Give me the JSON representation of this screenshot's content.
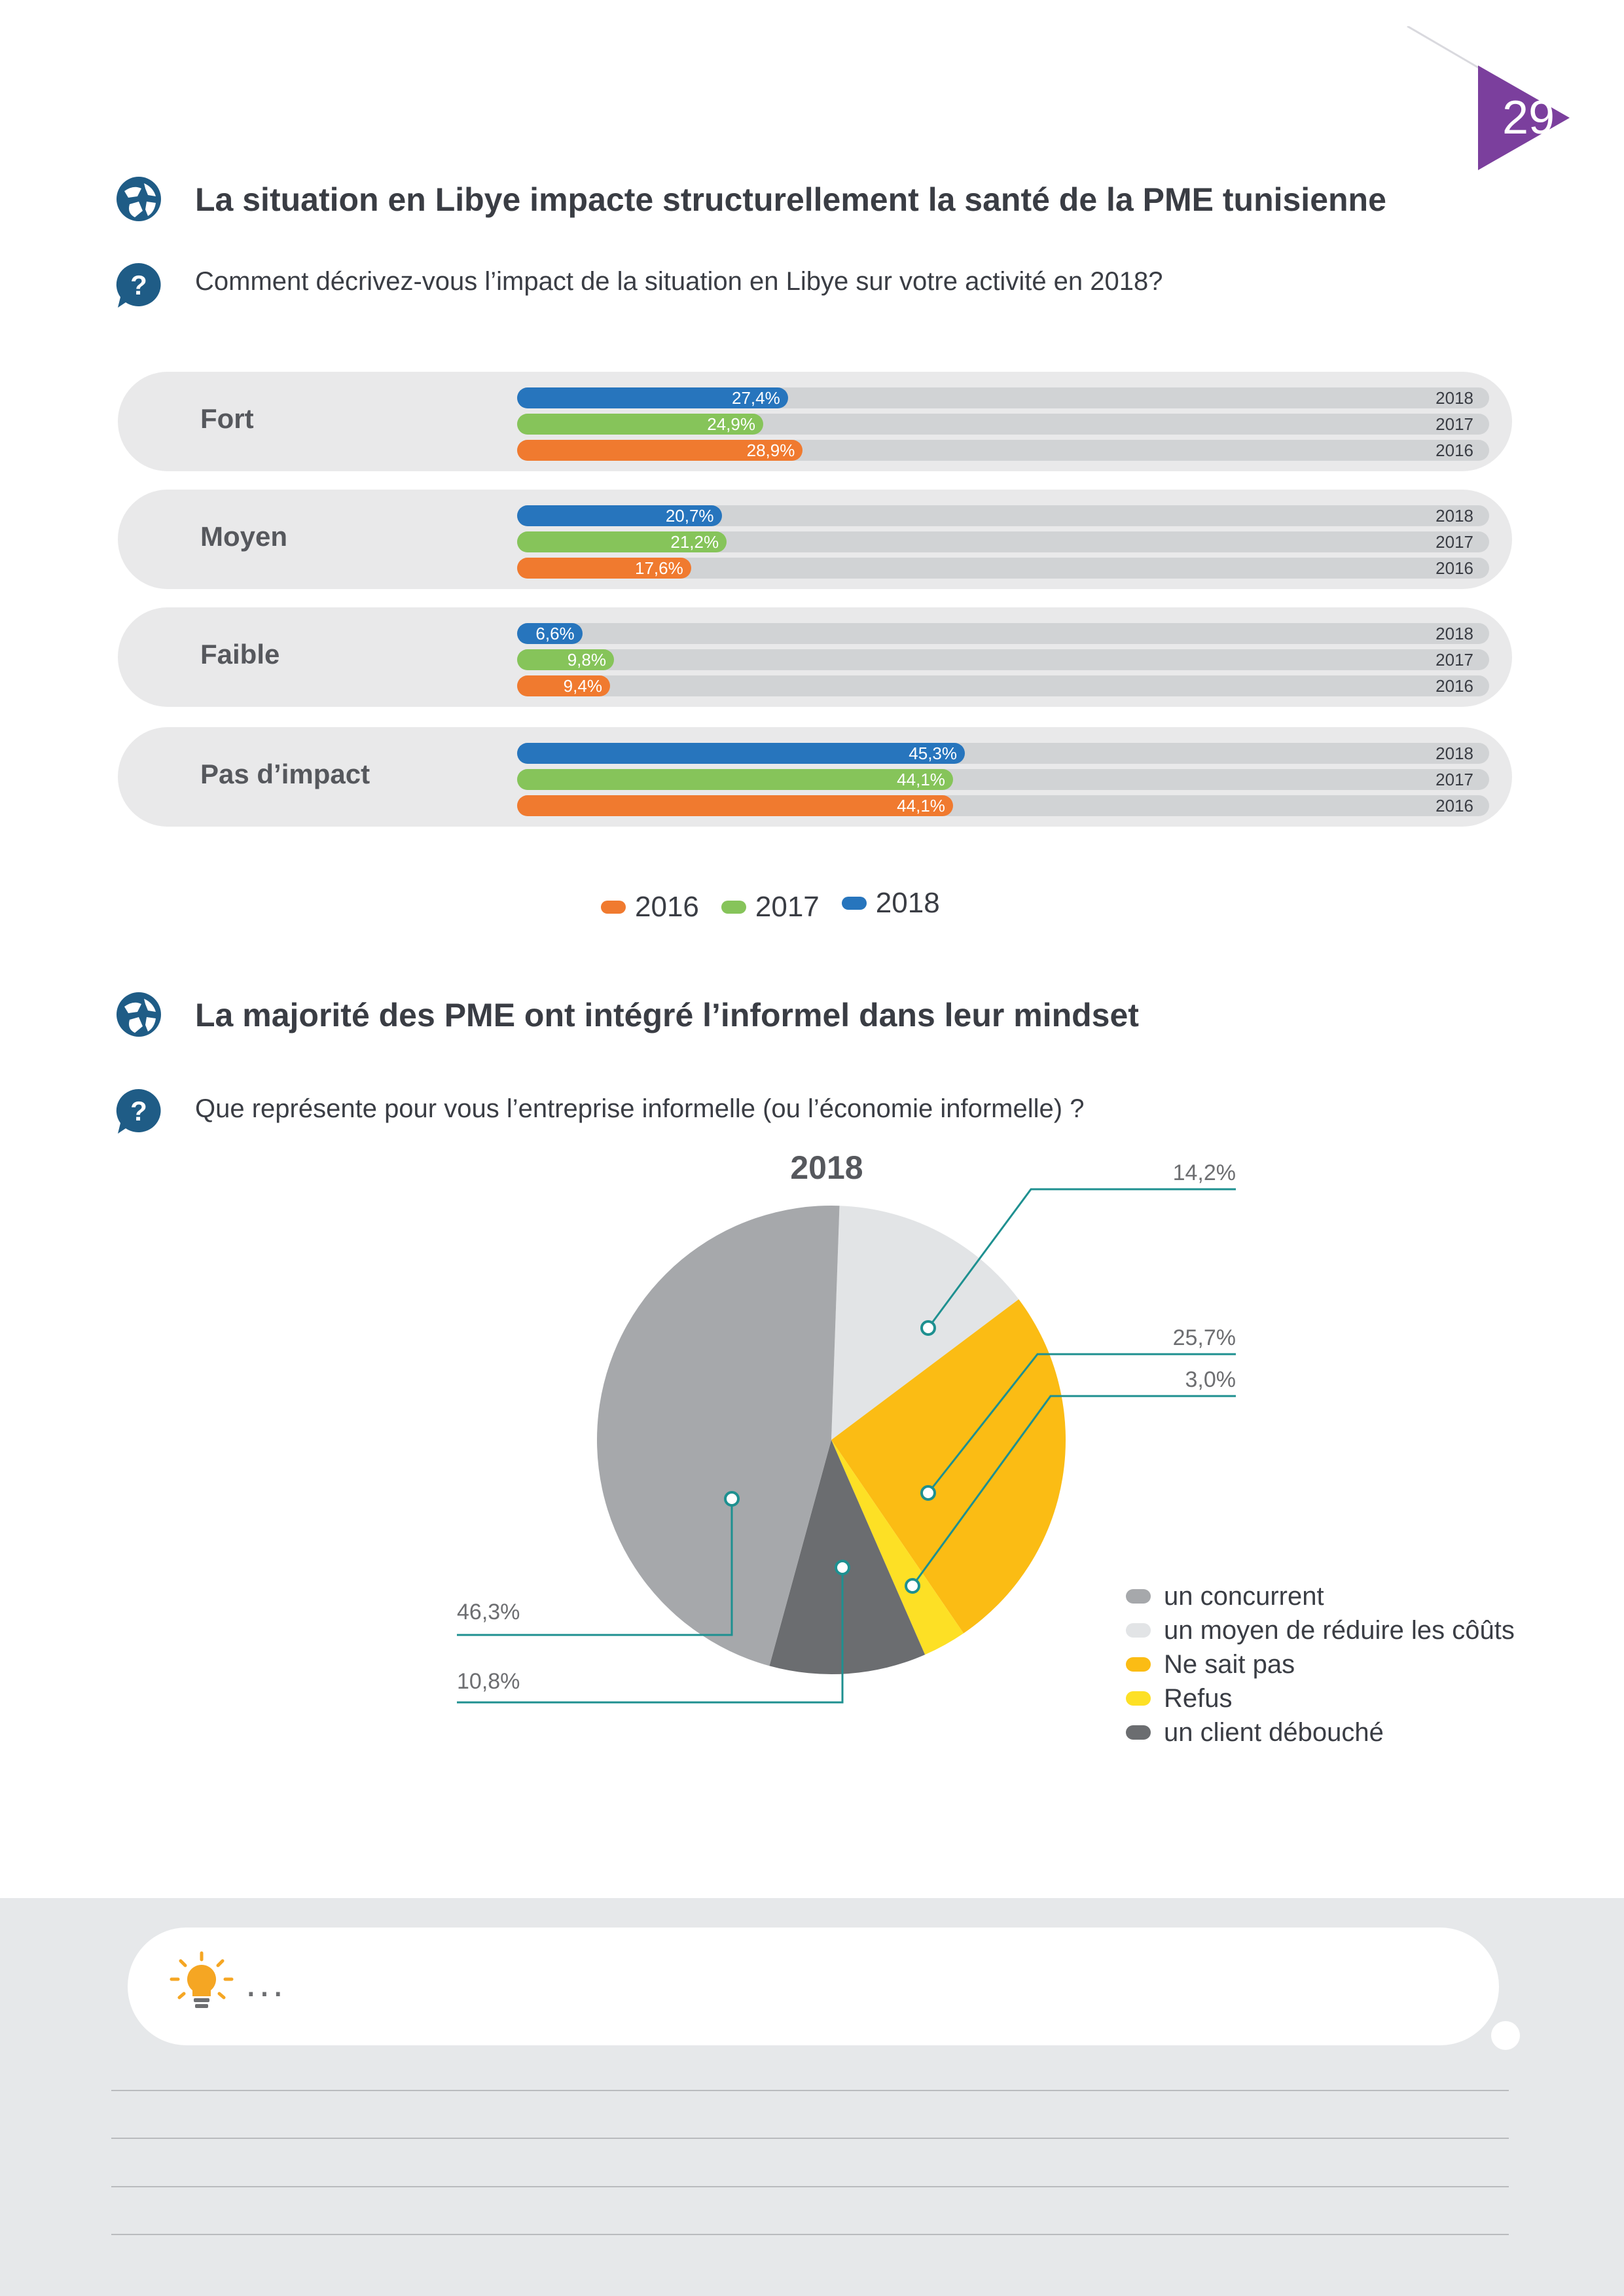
{
  "page": {
    "number": "29",
    "accent_color": "#7b3f9d"
  },
  "section1": {
    "title": "La situation en Libye impacte structurellement la santé  de la PME tunisienne",
    "title_icon": "globe-icon",
    "question": "Comment décrivez-vous l’impact de la situation en Libye sur votre activité en 2018?",
    "question_icon": "question-bubble-icon"
  },
  "section2": {
    "title": "La majorité des PME ont intégré l’informel dans leur mindset",
    "title_icon": "globe-icon",
    "question": "Que représente pour vous l’entreprise informelle (ou l’économie informelle) ?",
    "question_icon": "question-bubble-icon"
  },
  "chart_data": [
    {
      "type": "bar",
      "orientation": "horizontal",
      "categories": [
        "Fort",
        "Moyen",
        "Faible",
        "Pas d’impact"
      ],
      "series": [
        {
          "name": "2018",
          "color": "#2775bd",
          "values": [
            27.4,
            20.7,
            6.6,
            45.3
          ],
          "labels": [
            "27,4%",
            "20,7%",
            "6,6%",
            "45,3%"
          ]
        },
        {
          "name": "2017",
          "color": "#86c45a",
          "values": [
            24.9,
            21.2,
            9.8,
            44.1
          ],
          "labels": [
            "24,9%",
            "21,2%",
            "9,8%",
            "44,1%"
          ]
        },
        {
          "name": "2016",
          "color": "#f07a2f",
          "values": [
            28.9,
            17.6,
            9.4,
            44.1
          ],
          "labels": [
            "28,9%",
            "17,6%",
            "9,4%",
            "44,1%"
          ]
        }
      ],
      "legend": {
        "placement": "bottom",
        "items": [
          {
            "label": "2016",
            "color": "#f07a2f"
          },
          {
            "label": "2017",
            "color": "#86c45a"
          },
          {
            "label": "2018",
            "color": "#2775bd"
          }
        ]
      },
      "xlim": [
        0,
        100
      ]
    },
    {
      "type": "pie",
      "title": "2018",
      "slices": [
        {
          "label": "un moyen de réduire les côûts",
          "value": 14.2,
          "value_label": "14,2%",
          "color": "#e2e4e6"
        },
        {
          "label": "Ne sait pas",
          "value": 25.7,
          "value_label": "25,7%",
          "color": "#fbbc14"
        },
        {
          "label": "Refus",
          "value": 3.0,
          "value_label": "3,0%",
          "color": "#fde025"
        },
        {
          "label": "un client débouché",
          "value": 10.8,
          "value_label": "10,8%",
          "color": "#6b6d70"
        },
        {
          "label": "un concurrent",
          "value": 46.3,
          "value_label": "46,3%",
          "color": "#a6a8ab"
        }
      ],
      "legend_order": [
        "un concurrent",
        "un moyen de réduire les côûts",
        "Ne sait pas",
        "Refus",
        "un client débouché"
      ],
      "legend_placement": "bottom-right",
      "callout_color": "#1e9090"
    }
  ],
  "footer": {
    "note_text": "...",
    "note_icon": "lightbulb-icon"
  }
}
